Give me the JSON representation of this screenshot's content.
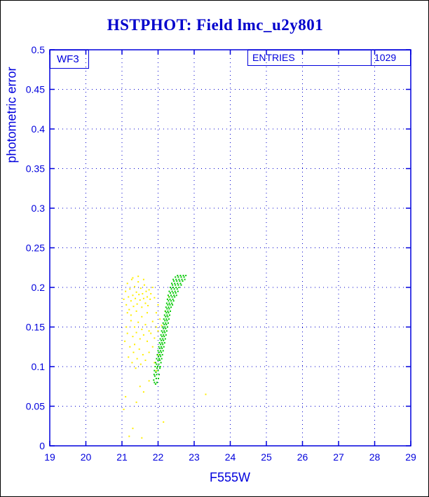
{
  "title": {
    "text": "HSTPHOT: Field lmc_u2y801",
    "color": "#0000cc"
  },
  "plot_annotations": {
    "chip_label": "WF3",
    "entries_label": "ENTRIES",
    "entries_value": "1029"
  },
  "chart_data": {
    "type": "scatter",
    "title": "HSTPHOT: Field lmc_u2y801",
    "xlabel": "F555W",
    "ylabel": "photometric error",
    "xlim": [
      19,
      29
    ],
    "ylim": [
      0,
      0.5
    ],
    "grid": true,
    "grid_style": "dotted",
    "axis_color": "#0000dd",
    "grid_color": "#0000cc",
    "x_ticks": [
      19,
      20,
      21,
      22,
      23,
      24,
      25,
      26,
      27,
      28,
      29
    ],
    "x_tick_labels": [
      "19",
      "20",
      "21",
      "22",
      "23",
      "24",
      "25",
      "26",
      "27",
      "28",
      "29"
    ],
    "y_ticks": [
      0,
      0.05,
      0.1,
      0.15,
      0.2,
      0.25,
      0.3,
      0.35,
      0.4,
      0.45,
      0.5
    ],
    "y_tick_labels": [
      "0",
      "0.05",
      "0.1",
      "0.15",
      "0.2",
      "0.25",
      "0.3",
      "0.35",
      "0.4",
      "0.45",
      "0.5"
    ],
    "series": [
      {
        "name": "yellow-points",
        "color": "#ffee00",
        "points": [
          [
            21.05,
            0.185
          ],
          [
            21.1,
            0.195
          ],
          [
            21.12,
            0.178
          ],
          [
            21.15,
            0.205
          ],
          [
            21.18,
            0.188
          ],
          [
            21.2,
            0.172
          ],
          [
            21.22,
            0.198
          ],
          [
            21.25,
            0.183
          ],
          [
            21.27,
            0.21
          ],
          [
            21.3,
            0.19
          ],
          [
            21.32,
            0.176
          ],
          [
            21.35,
            0.201
          ],
          [
            21.37,
            0.186
          ],
          [
            21.4,
            0.194
          ],
          [
            21.42,
            0.179
          ],
          [
            21.45,
            0.207
          ],
          [
            21.47,
            0.191
          ],
          [
            21.5,
            0.184
          ],
          [
            21.52,
            0.199
          ],
          [
            21.55,
            0.175
          ],
          [
            21.57,
            0.192
          ],
          [
            21.6,
            0.186
          ],
          [
            21.62,
            0.203
          ],
          [
            21.65,
            0.18
          ],
          [
            21.67,
            0.195
          ],
          [
            21.7,
            0.188
          ],
          [
            21.72,
            0.177
          ],
          [
            21.75,
            0.197
          ],
          [
            21.78,
            0.185
          ],
          [
            21.8,
            0.192
          ],
          [
            21.85,
            0.2
          ],
          [
            21.9,
            0.187
          ],
          [
            21.3,
            0.212
          ],
          [
            21.45,
            0.214
          ],
          [
            21.6,
            0.21
          ],
          [
            21.15,
            0.168
          ],
          [
            21.25,
            0.165
          ],
          [
            21.4,
            0.17
          ],
          [
            21.55,
            0.163
          ],
          [
            21.7,
            0.168
          ],
          [
            21.25,
            0.158
          ],
          [
            21.35,
            0.15
          ],
          [
            21.45,
            0.156
          ],
          [
            21.55,
            0.147
          ],
          [
            21.65,
            0.153
          ],
          [
            21.75,
            0.145
          ],
          [
            21.85,
            0.157
          ],
          [
            21.95,
            0.15
          ],
          [
            22.05,
            0.16
          ],
          [
            21.3,
            0.138
          ],
          [
            21.4,
            0.143
          ],
          [
            21.5,
            0.135
          ],
          [
            21.6,
            0.14
          ],
          [
            21.7,
            0.132
          ],
          [
            21.8,
            0.142
          ],
          [
            21.9,
            0.136
          ],
          [
            22.0,
            0.145
          ],
          [
            22.1,
            0.152
          ],
          [
            21.18,
            0.112
          ],
          [
            21.22,
            0.125
          ],
          [
            21.28,
            0.105
          ],
          [
            21.32,
            0.118
          ],
          [
            21.38,
            0.098
          ],
          [
            21.42,
            0.11
          ],
          [
            21.48,
            0.122
          ],
          [
            21.52,
            0.103
          ],
          [
            21.58,
            0.115
          ],
          [
            21.35,
            0.128
          ],
          [
            21.9,
            0.105
          ],
          [
            21.95,
            0.095
          ],
          [
            22.0,
            0.115
          ],
          [
            21.85,
            0.125
          ],
          [
            21.75,
            0.118
          ],
          [
            21.65,
            0.108
          ],
          [
            21.05,
            0.046
          ],
          [
            21.1,
            0.062
          ],
          [
            21.3,
            0.022
          ],
          [
            21.5,
            0.075
          ],
          [
            21.55,
            0.01
          ],
          [
            21.2,
            0.012
          ],
          [
            21.6,
            0.068
          ],
          [
            21.75,
            0.082
          ],
          [
            23.32,
            0.065
          ],
          [
            22.15,
            0.03
          ],
          [
            21.4,
            0.055
          ],
          [
            22.3,
            0.188
          ],
          [
            22.2,
            0.17
          ],
          [
            21.95,
            0.168
          ],
          [
            22.0,
            0.178
          ],
          [
            21.12,
            0.15
          ],
          [
            21.08,
            0.132
          ],
          [
            21.15,
            0.142
          ]
        ]
      },
      {
        "name": "green-points",
        "color": "#00c800",
        "points": [
          [
            21.93,
            0.078
          ],
          [
            21.9,
            0.08
          ],
          [
            21.97,
            0.08
          ],
          [
            21.88,
            0.083
          ],
          [
            21.95,
            0.085
          ],
          [
            22.01,
            0.085
          ],
          [
            21.91,
            0.088
          ],
          [
            21.89,
            0.09
          ],
          [
            21.96,
            0.09
          ],
          [
            22.03,
            0.09
          ],
          [
            21.94,
            0.093
          ],
          [
            21.9,
            0.095
          ],
          [
            22.0,
            0.095
          ],
          [
            21.97,
            0.098
          ],
          [
            22.05,
            0.098
          ],
          [
            21.92,
            0.1
          ],
          [
            21.99,
            0.1
          ],
          [
            22.06,
            0.1
          ],
          [
            21.96,
            0.103
          ],
          [
            22.02,
            0.103
          ],
          [
            21.93,
            0.105
          ],
          [
            22.08,
            0.105
          ],
          [
            22.0,
            0.108
          ],
          [
            22.05,
            0.108
          ],
          [
            21.96,
            0.11
          ],
          [
            22.03,
            0.11
          ],
          [
            22.1,
            0.11
          ],
          [
            22.01,
            0.113
          ],
          [
            22.07,
            0.113
          ],
          [
            21.98,
            0.115
          ],
          [
            22.05,
            0.115
          ],
          [
            22.12,
            0.115
          ],
          [
            22.03,
            0.118
          ],
          [
            22.09,
            0.118
          ],
          [
            22.0,
            0.12
          ],
          [
            22.07,
            0.12
          ],
          [
            22.14,
            0.12
          ],
          [
            22.05,
            0.123
          ],
          [
            22.11,
            0.123
          ],
          [
            22.02,
            0.125
          ],
          [
            22.09,
            0.125
          ],
          [
            22.16,
            0.125
          ],
          [
            22.07,
            0.128
          ],
          [
            22.13,
            0.128
          ],
          [
            22.04,
            0.13
          ],
          [
            22.11,
            0.13
          ],
          [
            22.18,
            0.13
          ],
          [
            22.09,
            0.133
          ],
          [
            22.15,
            0.133
          ],
          [
            22.06,
            0.135
          ],
          [
            22.13,
            0.135
          ],
          [
            22.2,
            0.135
          ],
          [
            22.11,
            0.138
          ],
          [
            22.17,
            0.138
          ],
          [
            22.08,
            0.14
          ],
          [
            22.15,
            0.14
          ],
          [
            22.22,
            0.14
          ],
          [
            22.13,
            0.143
          ],
          [
            22.19,
            0.143
          ],
          [
            22.1,
            0.145
          ],
          [
            22.17,
            0.145
          ],
          [
            22.24,
            0.145
          ],
          [
            22.15,
            0.148
          ],
          [
            22.21,
            0.148
          ],
          [
            22.12,
            0.15
          ],
          [
            22.19,
            0.15
          ],
          [
            22.26,
            0.15
          ],
          [
            22.17,
            0.153
          ],
          [
            22.23,
            0.153
          ],
          [
            22.14,
            0.155
          ],
          [
            22.21,
            0.155
          ],
          [
            22.28,
            0.155
          ],
          [
            22.19,
            0.158
          ],
          [
            22.25,
            0.158
          ],
          [
            22.16,
            0.16
          ],
          [
            22.23,
            0.16
          ],
          [
            22.3,
            0.16
          ],
          [
            22.21,
            0.163
          ],
          [
            22.27,
            0.163
          ],
          [
            22.18,
            0.165
          ],
          [
            22.25,
            0.165
          ],
          [
            22.32,
            0.165
          ],
          [
            22.23,
            0.168
          ],
          [
            22.29,
            0.168
          ],
          [
            22.2,
            0.17
          ],
          [
            22.27,
            0.17
          ],
          [
            22.34,
            0.17
          ],
          [
            22.25,
            0.173
          ],
          [
            22.31,
            0.173
          ],
          [
            22.22,
            0.175
          ],
          [
            22.29,
            0.175
          ],
          [
            22.36,
            0.175
          ],
          [
            22.27,
            0.178
          ],
          [
            22.33,
            0.178
          ],
          [
            22.4,
            0.178
          ],
          [
            22.24,
            0.18
          ],
          [
            22.31,
            0.18
          ],
          [
            22.38,
            0.18
          ],
          [
            22.29,
            0.183
          ],
          [
            22.36,
            0.183
          ],
          [
            22.43,
            0.183
          ],
          [
            22.26,
            0.185
          ],
          [
            22.33,
            0.185
          ],
          [
            22.41,
            0.185
          ],
          [
            22.31,
            0.188
          ],
          [
            22.39,
            0.188
          ],
          [
            22.46,
            0.188
          ],
          [
            22.28,
            0.19
          ],
          [
            22.36,
            0.19
          ],
          [
            22.44,
            0.19
          ],
          [
            22.51,
            0.19
          ],
          [
            22.34,
            0.193
          ],
          [
            22.42,
            0.193
          ],
          [
            22.49,
            0.193
          ],
          [
            22.31,
            0.195
          ],
          [
            22.39,
            0.195
          ],
          [
            22.47,
            0.195
          ],
          [
            22.55,
            0.195
          ],
          [
            22.37,
            0.198
          ],
          [
            22.45,
            0.198
          ],
          [
            22.53,
            0.198
          ],
          [
            22.34,
            0.2
          ],
          [
            22.42,
            0.2
          ],
          [
            22.5,
            0.2
          ],
          [
            22.58,
            0.2
          ],
          [
            22.4,
            0.203
          ],
          [
            22.48,
            0.203
          ],
          [
            22.56,
            0.203
          ],
          [
            22.64,
            0.203
          ],
          [
            22.38,
            0.205
          ],
          [
            22.46,
            0.205
          ],
          [
            22.54,
            0.205
          ],
          [
            22.62,
            0.205
          ],
          [
            22.44,
            0.208
          ],
          [
            22.52,
            0.208
          ],
          [
            22.6,
            0.208
          ],
          [
            22.68,
            0.208
          ],
          [
            22.42,
            0.21
          ],
          [
            22.5,
            0.21
          ],
          [
            22.58,
            0.21
          ],
          [
            22.66,
            0.21
          ],
          [
            22.74,
            0.21
          ],
          [
            22.48,
            0.213
          ],
          [
            22.56,
            0.213
          ],
          [
            22.64,
            0.213
          ],
          [
            22.72,
            0.213
          ],
          [
            22.54,
            0.215
          ],
          [
            22.62,
            0.215
          ],
          [
            22.7,
            0.215
          ],
          [
            22.77,
            0.215
          ]
        ]
      }
    ]
  }
}
